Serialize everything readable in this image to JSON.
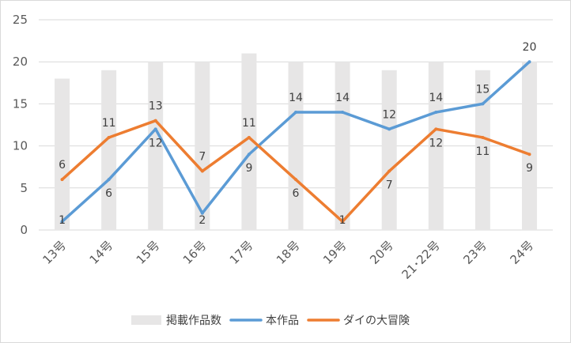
{
  "chart_data": {
    "type": "bar+line",
    "title": "",
    "categories": [
      "13号",
      "14号",
      "15号",
      "16号",
      "17号",
      "18号",
      "19号",
      "20号",
      "21･22号",
      "23号",
      "24号"
    ],
    "ylim": [
      0,
      25
    ],
    "yticks": [
      0,
      5,
      10,
      15,
      20,
      25
    ],
    "grid": true,
    "legend_position": "bottom",
    "series": [
      {
        "name": "掲載作品数",
        "kind": "bar",
        "color": "#e7e6e6",
        "values": [
          18,
          19,
          20,
          20,
          21,
          20,
          20,
          19,
          20,
          19,
          20
        ],
        "labels": false
      },
      {
        "name": "本作品",
        "kind": "line",
        "color": "#5b9bd5",
        "values": [
          1,
          6,
          12,
          2,
          9,
          14,
          14,
          12,
          14,
          15,
          20
        ],
        "labels": true
      },
      {
        "name": "ダイの大冒険",
        "kind": "line",
        "color": "#ed7d31",
        "values": [
          6,
          11,
          13,
          7,
          11,
          6,
          1,
          7,
          12,
          11,
          9
        ],
        "labels": true
      }
    ]
  }
}
